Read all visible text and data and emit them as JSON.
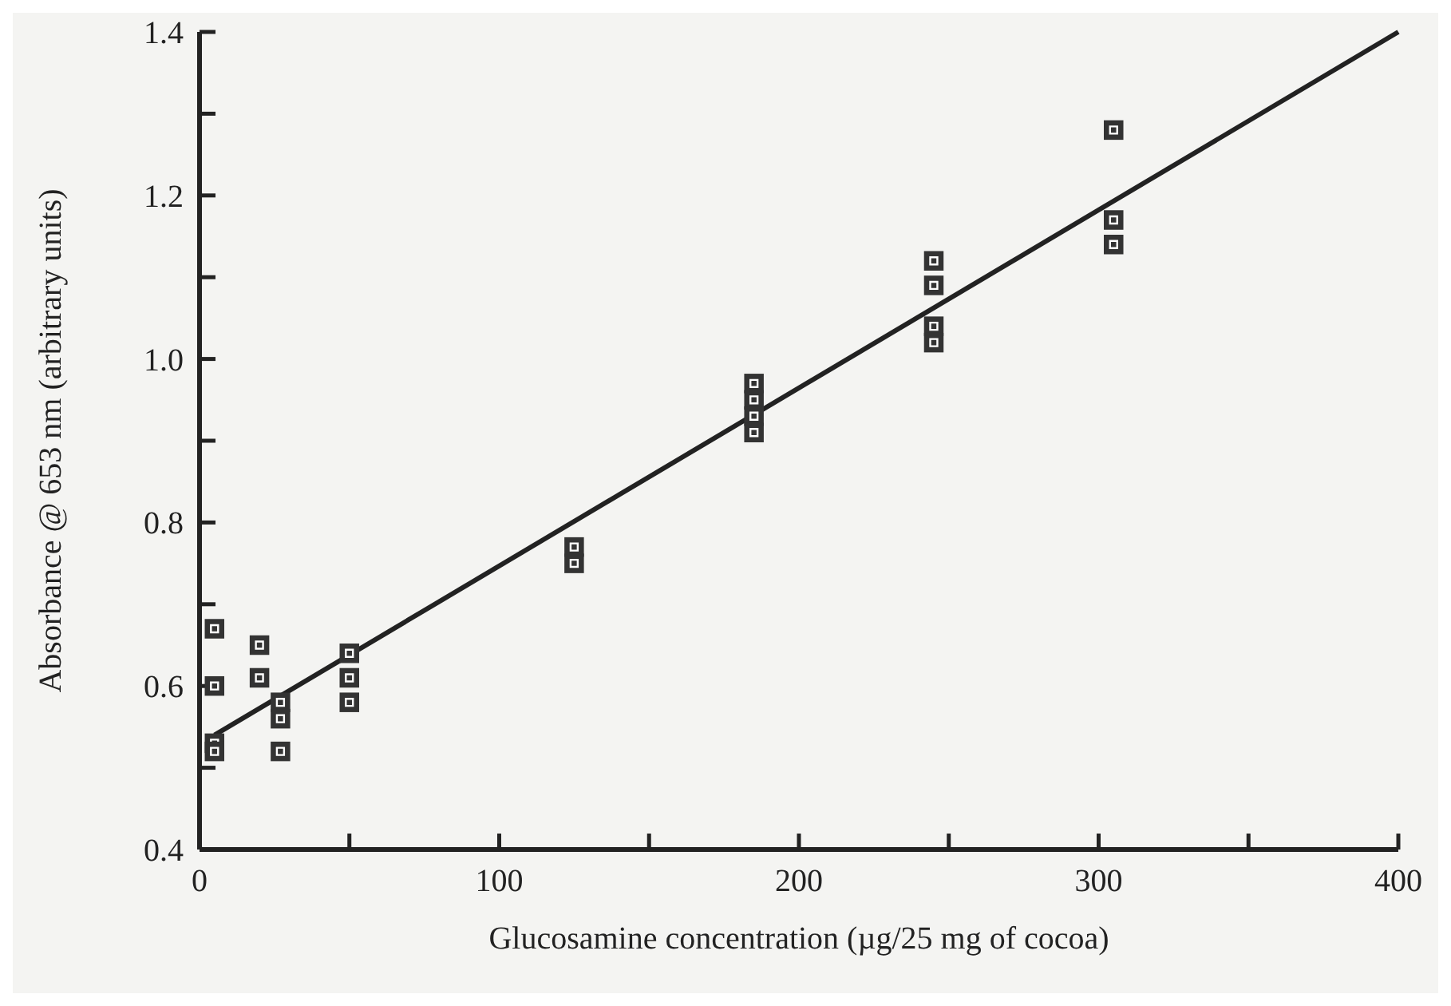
{
  "chart_data": {
    "type": "scatter",
    "xlabel": "Glucosamine concentration (µg/25 mg of cocoa)",
    "ylabel": "Absorbance @ 653 nm (arbitrary units)",
    "xlim": [
      0,
      400
    ],
    "ylim": [
      0.4,
      1.4
    ],
    "xticks": [
      0,
      {
        "value": 50,
        "label": null
      },
      100,
      {
        "value": 150,
        "label": null
      },
      200,
      {
        "value": 250,
        "label": null
      },
      300,
      {
        "value": 350,
        "label": null
      },
      400
    ],
    "yticks": [
      0.4,
      {
        "value": 0.5,
        "label": null
      },
      0.6,
      {
        "value": 0.7,
        "label": null
      },
      0.8,
      {
        "value": 0.9,
        "label": null
      },
      "1.0",
      {
        "value": 1.1,
        "label": null
      },
      1.2,
      {
        "value": 1.3,
        "label": null
      },
      1.4
    ],
    "grid": false,
    "marker": "square",
    "series": [
      {
        "color": "#333333",
        "x": [
          5,
          5,
          5,
          5,
          20,
          20,
          27,
          27,
          27,
          50,
          50,
          50,
          125,
          125,
          185,
          185,
          185,
          185,
          245,
          245,
          245,
          245,
          305,
          305,
          305
        ],
        "values": [
          0.67,
          0.6,
          0.53,
          0.52,
          0.65,
          0.61,
          0.58,
          0.56,
          0.52,
          0.64,
          0.61,
          0.58,
          0.77,
          0.75,
          0.97,
          0.95,
          0.93,
          0.91,
          1.12,
          1.09,
          1.04,
          1.02,
          1.28,
          1.17,
          1.14
        ]
      },
      {
        "type": "line",
        "color": "#222222",
        "marker": "none",
        "line_style": "solid",
        "x": [
          5,
          400
        ],
        "values": [
          0.54,
          1.4
        ]
      }
    ]
  }
}
